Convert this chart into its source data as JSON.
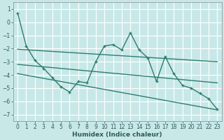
{
  "xlabel": "Humidex (Indice chaleur)",
  "xlim": [
    -0.5,
    23.5
  ],
  "ylim": [
    -7.5,
    1.5
  ],
  "yticks": [
    1,
    0,
    -1,
    -2,
    -3,
    -4,
    -5,
    -6,
    -7
  ],
  "xticks": [
    0,
    1,
    2,
    3,
    4,
    5,
    6,
    7,
    8,
    9,
    10,
    11,
    12,
    13,
    14,
    15,
    16,
    17,
    18,
    19,
    20,
    21,
    22,
    23
  ],
  "bg_color": "#c8e8e8",
  "grid_color": "#ffffff",
  "line_color": "#2e7d6e",
  "main_line": [
    0.7,
    -1.8,
    -2.9,
    -3.5,
    -4.2,
    -4.9,
    -5.3,
    -4.5,
    -4.6,
    -3.0,
    -1.8,
    -1.7,
    -2.1,
    -0.8,
    -2.1,
    -2.7,
    -4.5,
    -2.6,
    -3.9,
    -4.8,
    -5.0,
    -5.4,
    -5.8,
    -6.6
  ],
  "trend1_x": [
    0,
    23
  ],
  "trend1_y": [
    -2.05,
    -3.0
  ],
  "trend2_x": [
    0,
    23
  ],
  "trend2_y": [
    -3.2,
    -4.6
  ],
  "trend3_x": [
    0,
    23
  ],
  "trend3_y": [
    -3.9,
    -6.65
  ],
  "xlabel_fontsize": 6.5,
  "tick_fontsize": 5.5,
  "linewidth": 1.0
}
